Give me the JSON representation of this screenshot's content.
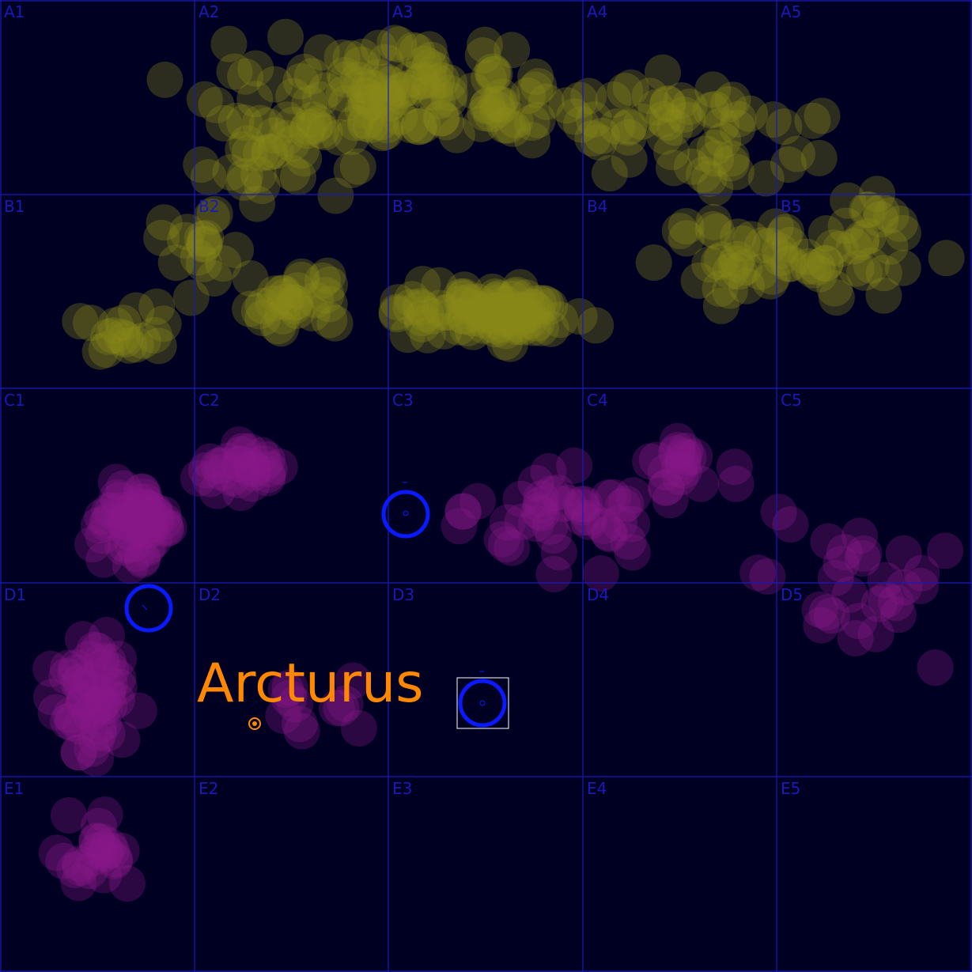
{
  "grid": {
    "rows": [
      "A",
      "B",
      "C",
      "D",
      "E"
    ],
    "cols": [
      "1",
      "2",
      "3",
      "4",
      "5"
    ],
    "labels": [
      "A1",
      "A2",
      "A3",
      "A4",
      "A5",
      "B1",
      "B2",
      "B3",
      "B4",
      "B5",
      "C1",
      "C2",
      "C3",
      "C4",
      "C5",
      "D1",
      "D2",
      "D3",
      "D4",
      "D5",
      "E1",
      "E2",
      "E3",
      "E4",
      "E5"
    ],
    "line_color": "#1a1ab8",
    "label_color": "#1a1ab8"
  },
  "target_star": {
    "label": "Arcturus",
    "label_color": "#ff8800"
  },
  "markers": {
    "ring_color": "#0a1aff",
    "selection_box_color": "#ffffff",
    "count": 3
  },
  "star_clusters": {
    "upper_color": "#8a8a1a",
    "lower_color": "#7a0a7a",
    "background": "#000022"
  }
}
